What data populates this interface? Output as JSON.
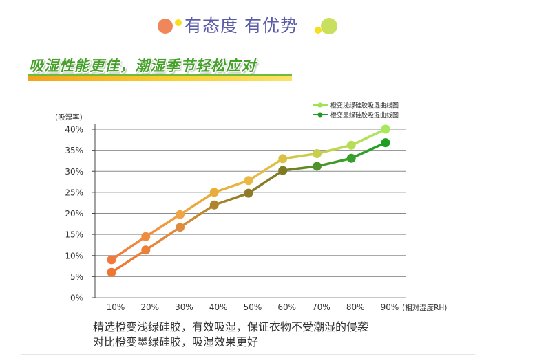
{
  "header": {
    "title": "有态度 有优势",
    "colors": {
      "title": "#5b5ca8",
      "dot_orange": "#f0875a",
      "dot_yellow": "#f7df1e",
      "dot_green": "#c9e05e"
    }
  },
  "banner": {
    "text": "吸湿性能更佳，潮湿季节轻松应对",
    "color": "#45a12a"
  },
  "chart_data": {
    "type": "line",
    "categories": [
      "10%",
      "20%",
      "30%",
      "40%",
      "50%",
      "60%",
      "70%",
      "80%",
      "90%"
    ],
    "x": [
      10,
      20,
      30,
      40,
      50,
      60,
      70,
      80,
      90
    ],
    "xlabel": "(相对湿度RH)",
    "ylabel": "(吸湿率)",
    "ylim": [
      0,
      40
    ],
    "yticks": [
      0,
      5,
      10,
      15,
      20,
      25,
      30,
      35,
      40
    ],
    "ytick_labels": [
      "0%",
      "5%",
      "10%",
      "15%",
      "20%",
      "25%",
      "30%",
      "35%",
      "40%"
    ],
    "grid": true,
    "legend": "top-right",
    "series": [
      {
        "name": "橙变浅绿硅胶吸湿曲线图",
        "values": [
          9,
          14.5,
          19.7,
          25,
          27.8,
          33,
          34.2,
          36.2,
          40
        ],
        "legend_color": "#9fe350",
        "point_colors": [
          "#f07a3c",
          "#f08c3e",
          "#f0a443",
          "#e8ad3a",
          "#e9b944",
          "#d9c243",
          "#c7cf4c",
          "#b7dd54",
          "#a7e85c"
        ]
      },
      {
        "name": "橙变墨绿硅胶吸湿曲线图",
        "values": [
          6,
          11.3,
          16.7,
          22,
          24.8,
          30.2,
          31.2,
          33.1,
          36.8
        ],
        "legend_color": "#229a22",
        "point_colors": [
          "#ee7631",
          "#ea8039",
          "#dd8d3d",
          "#ad852c",
          "#8f7b27",
          "#7c7b22",
          "#4e922a",
          "#37a02a",
          "#1f9f22"
        ]
      }
    ]
  },
  "caption": {
    "line1": "精选橙变浅绿硅胶，有效吸湿，保证衣物不受潮湿的侵袭",
    "line2": "对比橙变墨绿硅胶，吸湿效果更好"
  }
}
